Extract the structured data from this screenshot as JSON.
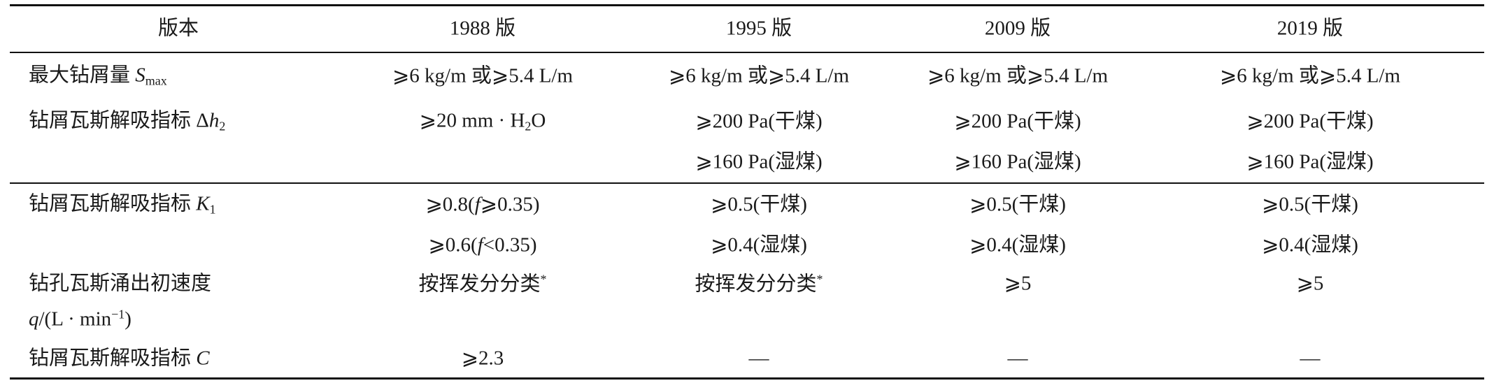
{
  "table": {
    "header": [
      "版本",
      "1988 版",
      "1995 版",
      "2009 版",
      "2019 版"
    ],
    "rows": [
      {
        "label": [
          [
            "最大钻屑量 ",
            {
              "i": "S"
            },
            {
              "sub": "max"
            }
          ]
        ],
        "cells": [
          [
            [
              "⩾6 kg/m 或⩾5.4 L/m"
            ]
          ],
          [
            [
              "⩾6 kg/m 或⩾5.4 L/m"
            ]
          ],
          [
            [
              "⩾6 kg/m 或⩾5.4 L/m"
            ]
          ],
          [
            [
              "⩾6 kg/m 或⩾5.4 L/m"
            ]
          ]
        ]
      },
      {
        "label": [
          [
            "钻屑瓦斯解吸指标 Δ",
            {
              "i": "h"
            },
            {
              "sub": "2"
            }
          ]
        ],
        "cells": [
          [
            [
              "⩾20 mm · H",
              {
                "sub": "2"
              },
              "O"
            ]
          ],
          [
            [
              "⩾200 Pa(干煤)"
            ],
            [
              "⩾160 Pa(湿煤)"
            ]
          ],
          [
            [
              "⩾200 Pa(干煤)"
            ],
            [
              "⩾160 Pa(湿煤)"
            ]
          ],
          [
            [
              "⩾200 Pa(干煤)"
            ],
            [
              "⩾160 Pa(湿煤)"
            ]
          ]
        ]
      },
      {
        "label": [
          [
            "钻屑瓦斯解吸指标 ",
            {
              "i": "K"
            },
            {
              "sub": "1"
            }
          ]
        ],
        "cells": [
          [
            [
              "⩾0.8(",
              {
                "i": "f"
              },
              "⩾0.35)"
            ],
            [
              "⩾0.6(",
              {
                "i": "f"
              },
              "<0.35)"
            ]
          ],
          [
            [
              "⩾0.5(干煤)"
            ],
            [
              "⩾0.4(湿煤)"
            ]
          ],
          [
            [
              "⩾0.5(干煤)"
            ],
            [
              "⩾0.4(湿煤)"
            ]
          ],
          [
            [
              "⩾0.5(干煤)"
            ],
            [
              "⩾0.4(湿煤)"
            ]
          ]
        ]
      },
      {
        "label": [
          [
            "钻孔瓦斯涌出初速度"
          ],
          [
            {
              "i": "q"
            },
            "/(L · min",
            {
              "sup": "−1"
            },
            ")"
          ]
        ],
        "cells": [
          [
            [
              "按挥发分分类",
              {
                "sup": "*"
              }
            ]
          ],
          [
            [
              "按挥发分分类",
              {
                "sup": "*"
              }
            ]
          ],
          [
            [
              "⩾5"
            ]
          ],
          [
            [
              "⩾5"
            ]
          ]
        ]
      },
      {
        "label": [
          [
            "钻屑瓦斯解吸指标 ",
            {
              "i": "C"
            }
          ]
        ],
        "cells": [
          [
            [
              "⩾2.3"
            ]
          ],
          [
            [
              "—"
            ]
          ],
          [
            [
              "—"
            ]
          ],
          [
            [
              "—"
            ]
          ]
        ]
      }
    ]
  }
}
